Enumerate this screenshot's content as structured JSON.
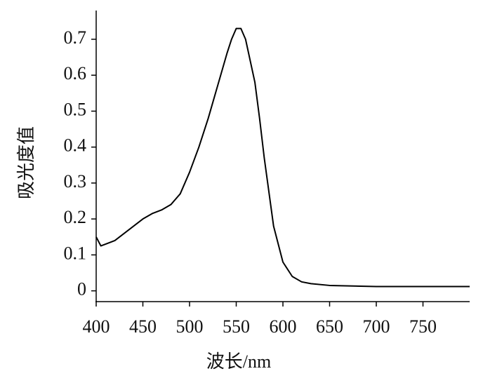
{
  "chart_data": {
    "type": "line",
    "xlabel": "波长/nm",
    "ylabel": "吸光度值",
    "x": [
      400,
      405,
      410,
      420,
      430,
      440,
      450,
      460,
      470,
      480,
      490,
      500,
      510,
      520,
      530,
      540,
      545,
      550,
      555,
      560,
      570,
      575,
      580,
      590,
      600,
      610,
      620,
      630,
      650,
      700,
      800
    ],
    "series": [
      {
        "color": "#000000",
        "values": [
          0.15,
          0.125,
          0.13,
          0.14,
          0.16,
          0.18,
          0.2,
          0.215,
          0.225,
          0.24,
          0.27,
          0.33,
          0.4,
          0.48,
          0.57,
          0.66,
          0.7,
          0.73,
          0.73,
          0.7,
          0.58,
          0.48,
          0.37,
          0.18,
          0.08,
          0.04,
          0.025,
          0.02,
          0.015,
          0.012,
          0.012
        ]
      }
    ],
    "xlim": [
      400,
      800
    ],
    "xticks": [
      400,
      450,
      500,
      550,
      600,
      650,
      700,
      750
    ],
    "ylim": [
      -0.03,
      0.78
    ],
    "yticks": [
      0,
      0.1,
      0.2,
      0.3,
      0.4,
      0.5,
      0.6,
      0.7
    ]
  }
}
